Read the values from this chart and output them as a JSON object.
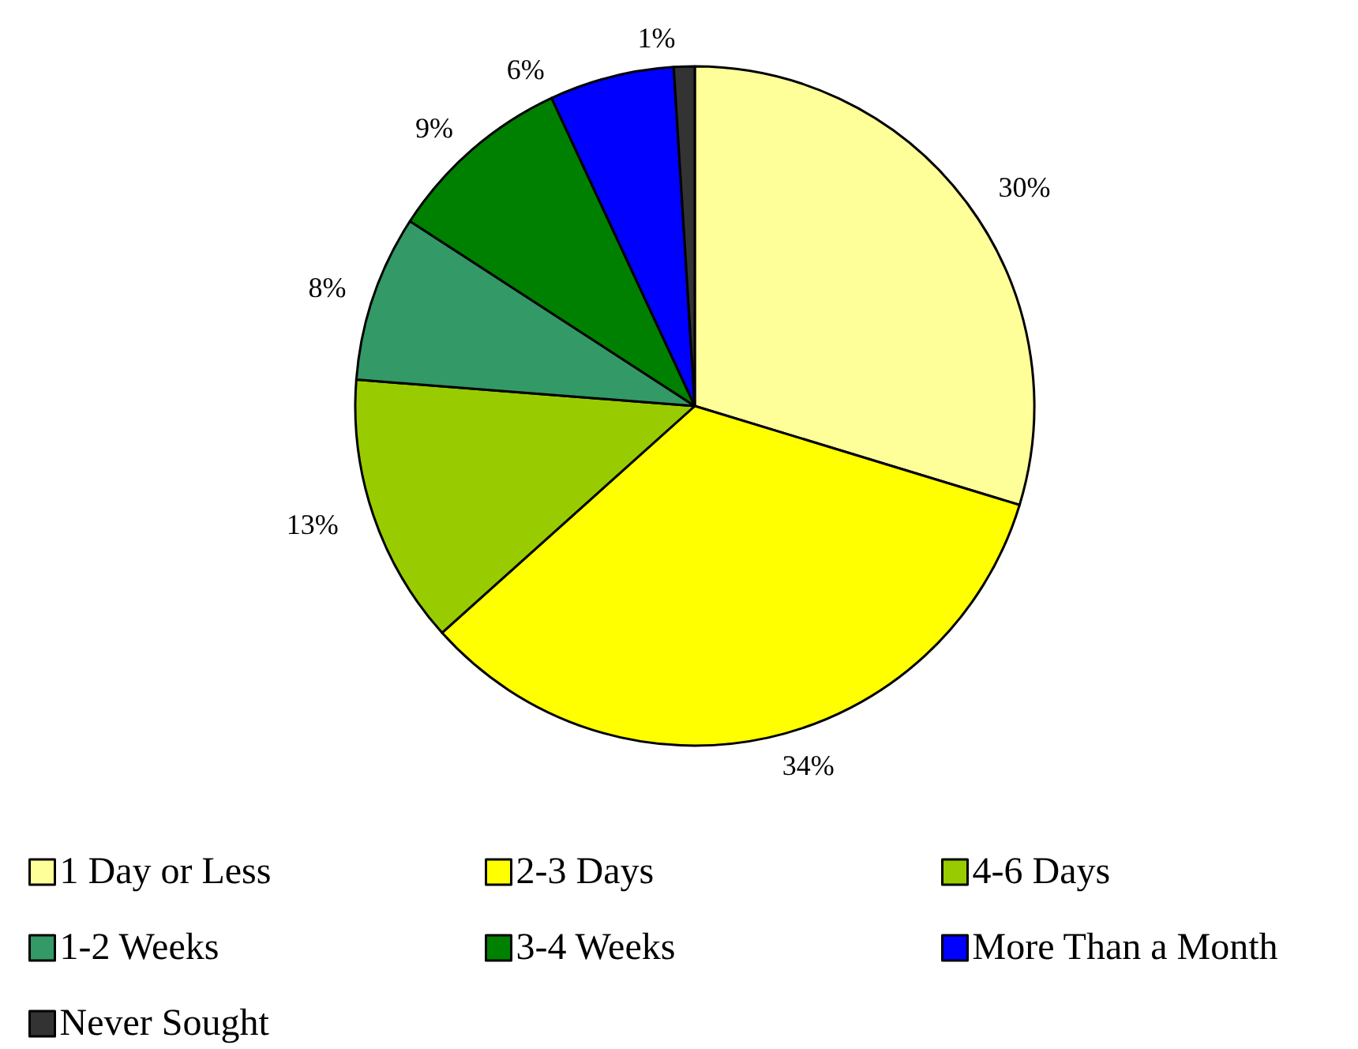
{
  "chart_data": {
    "type": "pie",
    "categories": [
      "1 Day or Less",
      "2-3 Days",
      "4-6 Days",
      "1-2 Weeks",
      "3-4 Weeks",
      "More Than a Month",
      "Never Sought"
    ],
    "values": [
      30,
      34,
      13,
      8,
      9,
      6,
      1
    ],
    "value_labels": [
      "30%",
      "34%",
      "13%",
      "8%",
      "9%",
      "6%",
      "1%"
    ],
    "colors": [
      "#ffff99",
      "#ffff00",
      "#99cc00",
      "#339966",
      "#008000",
      "#0000ff",
      "#333333"
    ],
    "legend": "bottom"
  }
}
